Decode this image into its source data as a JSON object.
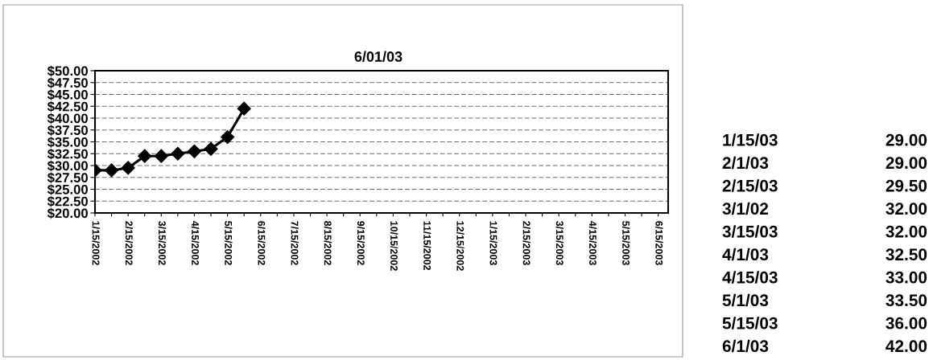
{
  "chart_data": {
    "type": "line",
    "title": "6/01/03",
    "categories": [
      "1/15/2002",
      null,
      "2/15/2002",
      null,
      "3/15/2002",
      null,
      "4/15/2002",
      null,
      "5/15/2002",
      null,
      "6/15/2002",
      null,
      "7/15/2002",
      null,
      "8/15/2002",
      null,
      "9/15/2002",
      null,
      "10/15/2002",
      null,
      "11/15/2002",
      null,
      "12/15/2002",
      null,
      "1/15/2003",
      null,
      "2/15/2003",
      null,
      "3/15/2003",
      null,
      "4/15/2003",
      null,
      "5/15/2003",
      null,
      "6/15/2003"
    ],
    "series": [
      {
        "color": "#000000",
        "values": [
          29,
          29,
          29.5,
          32,
          32,
          32.5,
          33,
          33.5,
          36,
          42,
          null,
          null,
          null,
          null,
          null,
          null,
          null,
          null,
          null,
          null,
          null,
          null,
          null,
          null,
          null,
          null,
          null,
          null,
          null,
          null,
          null,
          null,
          null,
          null,
          null
        ]
      }
    ],
    "ylim": [
      20,
      50
    ],
    "yticks": [
      {
        "value": 20,
        "label": "$20.00"
      },
      {
        "value": 22.5,
        "label": "$22.50"
      },
      {
        "value": 25,
        "label": "$25.00"
      },
      {
        "value": 27.5,
        "label": "$27.50"
      },
      {
        "value": 30,
        "label": "$30.00"
      },
      {
        "value": 32.5,
        "label": "$32.50"
      },
      {
        "value": 35,
        "label": "$35.00"
      },
      {
        "value": 37.5,
        "label": "$37.50"
      },
      {
        "value": 40,
        "label": "$40.00"
      },
      {
        "value": 42.5,
        "label": "$42.50"
      },
      {
        "value": 45,
        "label": "$45.00"
      },
      {
        "value": 47.5,
        "label": "$47.50"
      },
      {
        "value": 50,
        "label": "$50.00"
      }
    ],
    "grid": "y",
    "marker": "diamond",
    "line_style": "solid",
    "annotations": [
      "1/15/03",
      "29.00",
      "2/1/03",
      "29.00",
      "2/15/03",
      "29.50",
      "3/1/02",
      "32.00",
      "3/15/03",
      "32.00",
      "4/1/03",
      "32.50",
      "4/15/03",
      "33.00",
      "5/1/03",
      "33.50",
      "5/15/03",
      "36.00",
      "6/1/03",
      "42.00"
    ]
  }
}
